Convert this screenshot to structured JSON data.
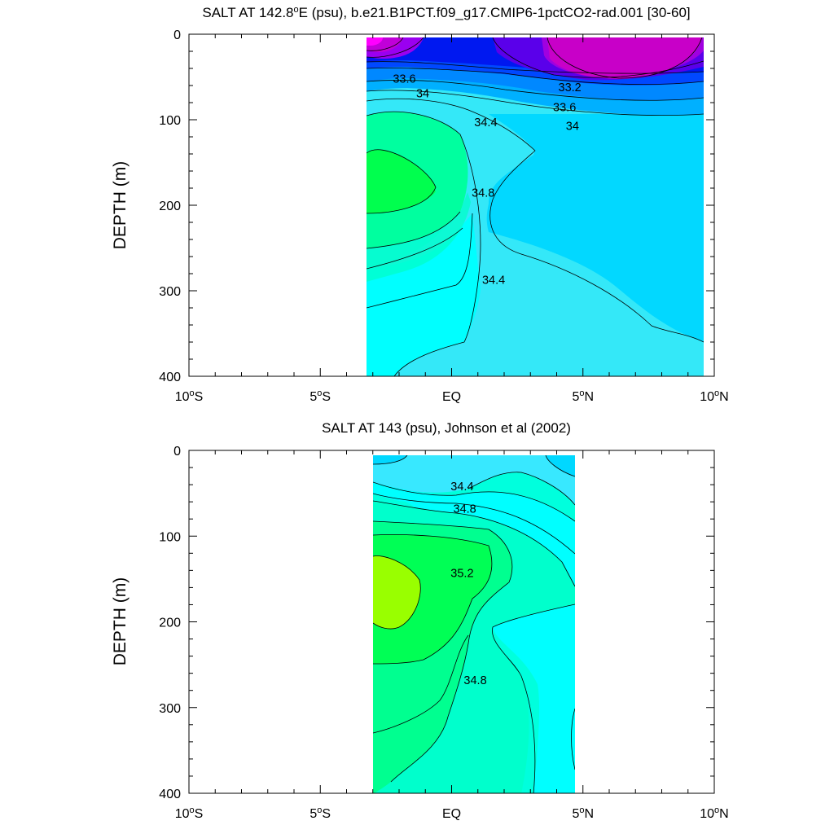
{
  "chart_data": [
    {
      "type": "contour",
      "title_prefix": "SALT AT 142.8",
      "title_sup": "o",
      "title_suffix": "E (psu), b.e21.B1PCT.f09_g17.CMIP6-1pctCO2-rad.001 [30-60]",
      "ylabel": "DEPTH (m)",
      "xlabel": "",
      "xlim": [
        -10,
        10
      ],
      "ylim": [
        0,
        400
      ],
      "y_reversed": true,
      "x_ticks": [
        {
          "value": -10,
          "num": "10",
          "hem": "S"
        },
        {
          "value": -5,
          "num": "5",
          "hem": "S"
        },
        {
          "value": 0,
          "num": "EQ",
          "hem": ""
        },
        {
          "value": 5,
          "num": "5",
          "hem": "N"
        },
        {
          "value": 10,
          "num": "10",
          "hem": "N"
        }
      ],
      "y_ticks": [
        "0",
        "100",
        "200",
        "300",
        "400"
      ],
      "data_extent_x": [
        -3.1,
        10
      ],
      "data_extent_y": [
        5,
        400
      ],
      "contour_labels": [
        {
          "text": "33.6",
          "x": -1.8,
          "y": 52
        },
        {
          "text": "34",
          "x": -1.1,
          "y": 69
        },
        {
          "text": "33.2",
          "x": 4.5,
          "y": 62
        },
        {
          "text": "33.6",
          "x": 4.3,
          "y": 85
        },
        {
          "text": "34",
          "x": 4.6,
          "y": 107
        },
        {
          "text": "34.4",
          "x": 1.3,
          "y": 103
        },
        {
          "text": "34.8",
          "x": 1.2,
          "y": 185
        },
        {
          "text": "34.4",
          "x": 1.6,
          "y": 287
        }
      ]
    },
    {
      "type": "contour",
      "title_prefix": "SALT AT 143 (psu), Johnson et al (2002)",
      "title_sup": "",
      "title_suffix": "",
      "ylabel": "DEPTH (m)",
      "xlabel": "",
      "xlim": [
        -10,
        10
      ],
      "ylim": [
        0,
        400
      ],
      "y_reversed": true,
      "x_ticks": [
        {
          "value": -10,
          "num": "10",
          "hem": "S"
        },
        {
          "value": -5,
          "num": "5",
          "hem": "S"
        },
        {
          "value": 0,
          "num": "EQ",
          "hem": ""
        },
        {
          "value": 5,
          "num": "5",
          "hem": "N"
        },
        {
          "value": 10,
          "num": "10",
          "hem": "N"
        }
      ],
      "y_ticks": [
        "0",
        "100",
        "200",
        "300",
        "400"
      ],
      "data_extent_x": [
        -2.8,
        5
      ],
      "data_extent_y": [
        5,
        400
      ],
      "contour_labels": [
        {
          "text": "34.4",
          "x": 0.4,
          "y": 42
        },
        {
          "text": "34.8",
          "x": 0.5,
          "y": 68
        },
        {
          "text": "35.2",
          "x": 0.4,
          "y": 143
        },
        {
          "text": "34.8",
          "x": 0.9,
          "y": 268
        }
      ]
    }
  ]
}
